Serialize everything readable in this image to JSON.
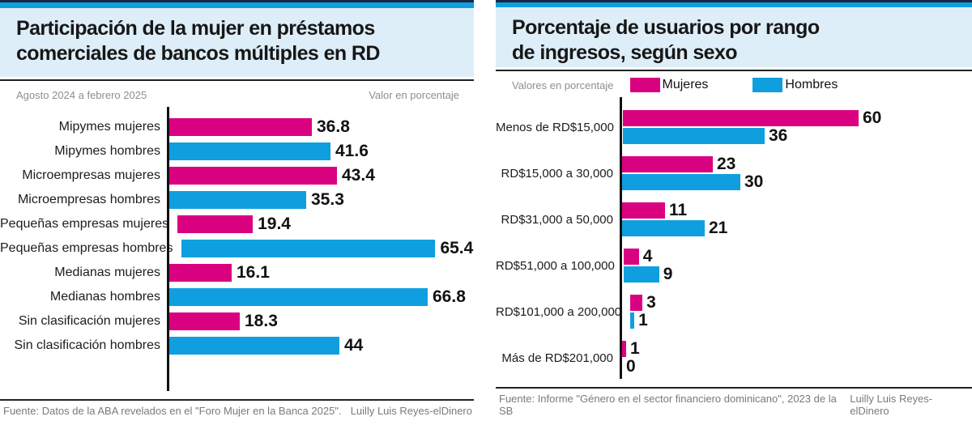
{
  "credit": "Luilly Luis Reyes-elDinero",
  "colors": {
    "mujeres": "#da0181",
    "hombres": "#0f9fdf",
    "header_bg": "#deeef8",
    "strip_blue": "#0f9fdf",
    "strip_navy": "#1b2740"
  },
  "left_panel": {
    "title_line1": "Participación de la mujer en préstamos",
    "title_line2": "comerciales de bancos múltiples en RD",
    "period": "Agosto 2024 a febrero 2025",
    "unit_note": "Valor en porcentaje",
    "source": "Fuente: Datos de la ABA revelados en el \"Foro Mujer en la Banca 2025\"."
  },
  "right_panel": {
    "title_line1": "Porcentaje de usuarios por rango",
    "title_line2": "de ingresos, según sexo",
    "unit_note": "Valores en porcentaje",
    "legend": [
      {
        "label": "Mujeres",
        "color_key": "mujeres"
      },
      {
        "label": "Hombres",
        "color_key": "hombres"
      }
    ],
    "source": "Fuente: Informe \"Género en el sector financiero dominicano\", 2023 de la SB"
  },
  "chart_data": [
    {
      "type": "bar",
      "orientation": "horizontal",
      "title": "Participación de la mujer en préstamos comerciales de bancos múltiples en RD",
      "subtitle": "Agosto 2024 a febrero 2025",
      "unit": "Valor en porcentaje",
      "categories": [
        "Mipymes mujeres",
        "Mipymes hombres",
        "Microempresas mujeres",
        "Microempresas hombres",
        "Pequeñas empresas mujeres",
        "Pequeñas empresas hombres",
        "Medianas mujeres",
        "Medianas hombres",
        "Sin clasificación mujeres",
        "Sin clasificación hombres"
      ],
      "values": [
        36.8,
        41.6,
        43.4,
        35.3,
        19.4,
        65.4,
        16.1,
        66.8,
        18.3,
        44
      ],
      "xlim": [
        0,
        70
      ],
      "grid": false,
      "legend_position": "none"
    },
    {
      "type": "bar",
      "orientation": "horizontal",
      "title": "Porcentaje de usuarios por rango de ingresos, según sexo",
      "unit": "Valores en porcentaje",
      "categories": [
        "Menos de RD$15,000",
        "RD$15,000 a 30,000",
        "RD$31,000 a 50,000",
        "RD$51,000 a 100,000",
        "RD$101,000 a 200,000",
        "Más de RD$201,000"
      ],
      "series": [
        {
          "name": "Mujeres",
          "values": [
            60,
            23,
            11,
            4,
            3,
            1
          ]
        },
        {
          "name": "Hombres",
          "values": [
            36,
            30,
            21,
            9,
            1,
            0
          ]
        }
      ],
      "xlim": [
        0,
        62
      ],
      "grid": false,
      "legend_position": "top"
    }
  ]
}
